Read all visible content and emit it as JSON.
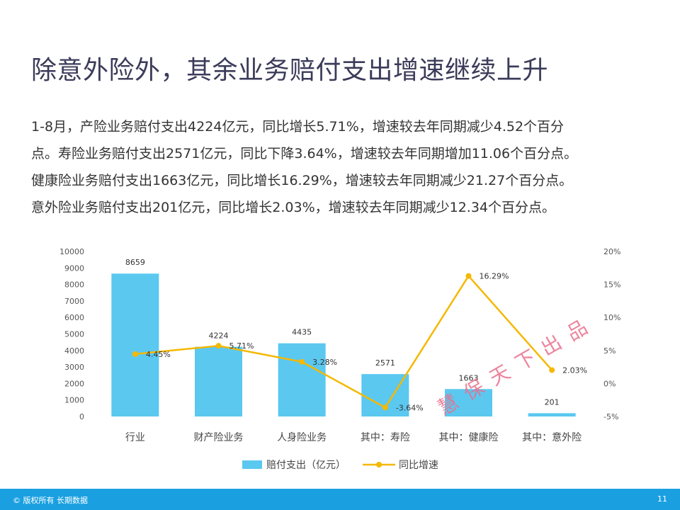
{
  "title": "除意外险外，其余业务赔付支出增速继续上升",
  "paragraph": {
    "lines": [
      "1-8月，产险业务赔付支出4224亿元，同比增长5.71%，增速较去年同期减少4.52个百分",
      "点。寿险业务赔付支出2571亿元，同比下降3.64%，增速较去年同期增加11.06个百分点。",
      "健康险业务赔付支出1663亿元，同比增长16.29%，增速较去年同期减少21.27个百分点。",
      "意外险业务赔付支出201亿元，同比增长2.03%，增速较去年同期减少12.34个百分点。"
    ]
  },
  "chart_data": {
    "type": "bar",
    "categories": [
      "行业",
      "财产险业务",
      "人身险业务",
      "其中：寿险",
      "其中：健康险",
      "其中：意外险"
    ],
    "series": [
      {
        "name": "赔付支出（亿元）",
        "type": "bar",
        "axis": "left",
        "color": "#5bc8f0",
        "values": [
          8659,
          4224,
          4435,
          2571,
          1663,
          201
        ],
        "labels": [
          "8659",
          "4224",
          "4435",
          "2571",
          "1663",
          "201"
        ]
      },
      {
        "name": "同比增速",
        "type": "line",
        "axis": "right",
        "color": "#f5b800",
        "values": [
          4.45,
          5.71,
          3.28,
          -3.64,
          16.29,
          2.03
        ],
        "labels": [
          "4.45%",
          "5.71%",
          "3.28%",
          "-3.64%",
          "16.29%",
          "2.03%"
        ]
      }
    ],
    "y_left": {
      "ylim": [
        0,
        10000
      ],
      "ticks": [
        "0",
        "1000",
        "2000",
        "3000",
        "4000",
        "5000",
        "6000",
        "7000",
        "8000",
        "9000",
        "10000"
      ]
    },
    "y_right": {
      "ylim": [
        -5,
        20
      ],
      "ticks": [
        "-5%",
        "0%",
        "5%",
        "10%",
        "15%",
        "20%"
      ]
    },
    "grid": false,
    "legend_position": "bottom"
  },
  "watermark": "慧保天下出品",
  "footer": {
    "copyright": "© 版权所有 长期数据",
    "page": "11",
    "color": "#1aa0e1"
  }
}
